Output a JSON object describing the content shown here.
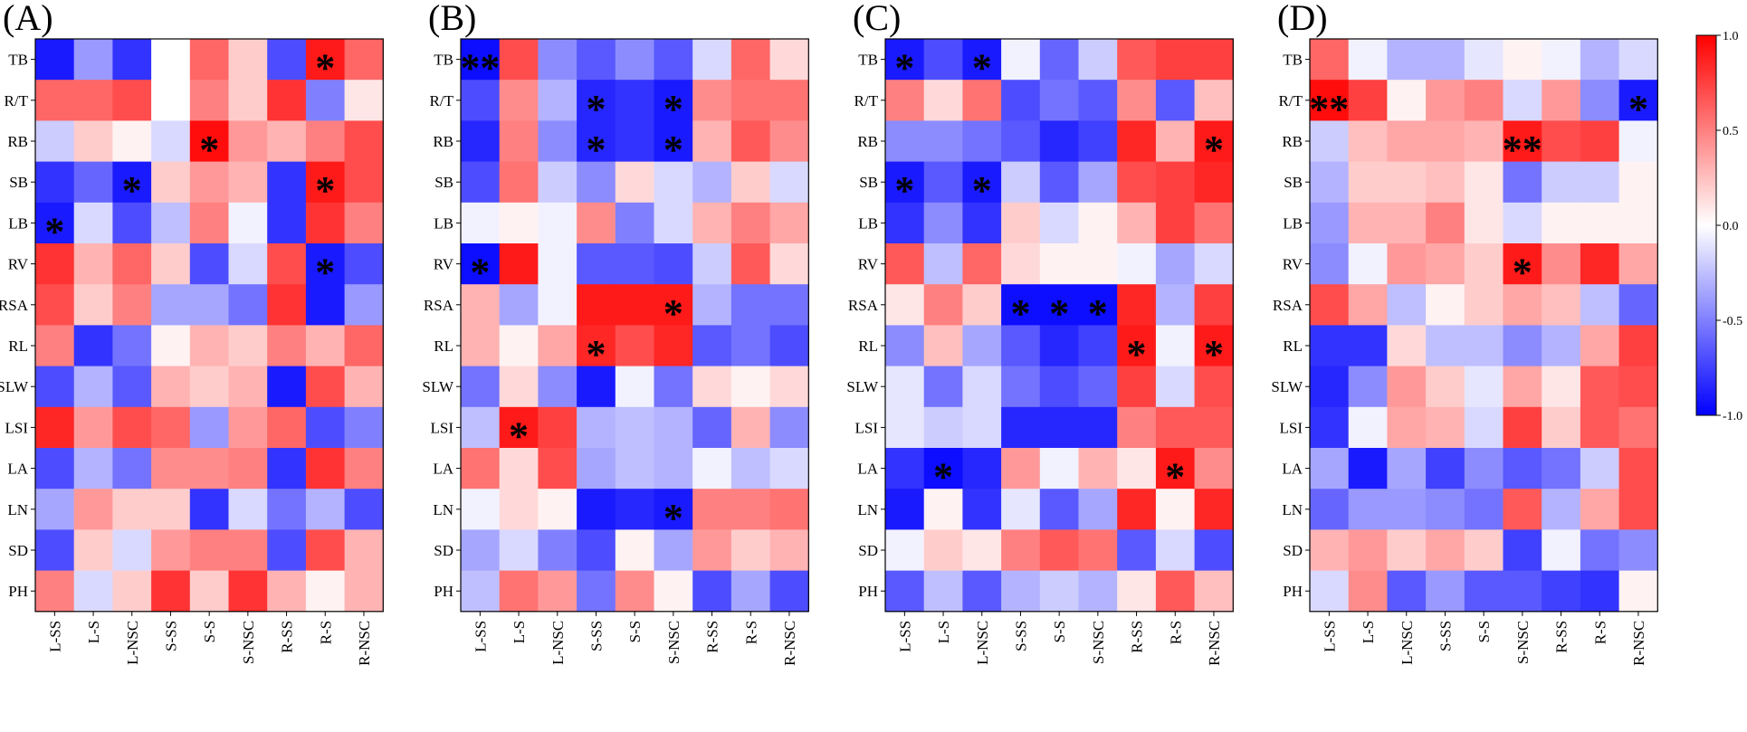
{
  "chart_data": {
    "type": "heatmap",
    "row_labels": [
      "TB",
      "R/T",
      "RB",
      "SB",
      "LB",
      "RV",
      "RSA",
      "RL",
      "SLW",
      "LSI",
      "LA",
      "LN",
      "SD",
      "PH"
    ],
    "col_labels": [
      "L-SS",
      "L-S",
      "L-NSC",
      "S-SS",
      "S-S",
      "S-NSC",
      "R-SS",
      "R-S",
      "R-NSC"
    ],
    "colorbar": {
      "min": -1.0,
      "max": 1.0,
      "ticks": [
        "1.0",
        "0.5",
        "0.0",
        "-0.5",
        "-1.0"
      ],
      "tick_values": [
        1.0,
        0.5,
        0.0,
        -0.5,
        -1.0
      ],
      "low_color": "#0000ff",
      "mid_color": "#ffffff",
      "high_color": "#ff0000"
    },
    "panels": [
      {
        "label": "(A)",
        "values": [
          [
            -0.9,
            -0.4,
            -0.8,
            0.0,
            0.6,
            0.2,
            -0.7,
            0.9,
            0.6
          ],
          [
            0.6,
            0.6,
            0.7,
            0.0,
            0.5,
            0.2,
            0.8,
            -0.5,
            0.1
          ],
          [
            -0.2,
            0.2,
            0.05,
            -0.15,
            0.95,
            0.4,
            0.3,
            0.5,
            0.7
          ],
          [
            -0.8,
            -0.6,
            -0.9,
            0.2,
            0.4,
            0.3,
            -0.8,
            0.9,
            0.7
          ],
          [
            -0.9,
            -0.15,
            -0.7,
            -0.25,
            0.5,
            -0.05,
            -0.8,
            0.8,
            0.5
          ],
          [
            0.8,
            0.3,
            0.6,
            0.2,
            -0.7,
            -0.15,
            0.7,
            -0.9,
            -0.7
          ],
          [
            0.7,
            0.2,
            0.5,
            -0.35,
            -0.35,
            -0.55,
            0.8,
            -0.9,
            -0.4
          ],
          [
            0.5,
            -0.8,
            -0.55,
            0.05,
            0.3,
            0.2,
            0.5,
            0.3,
            0.6
          ],
          [
            -0.7,
            -0.3,
            -0.65,
            0.3,
            0.2,
            0.3,
            -0.9,
            0.7,
            0.3
          ],
          [
            0.85,
            0.4,
            0.7,
            0.6,
            -0.4,
            0.4,
            0.6,
            -0.7,
            -0.5
          ],
          [
            -0.7,
            -0.3,
            -0.55,
            0.45,
            0.45,
            0.5,
            -0.8,
            0.8,
            0.5
          ],
          [
            -0.35,
            0.4,
            0.2,
            0.2,
            -0.8,
            -0.15,
            -0.55,
            -0.3,
            -0.7
          ],
          [
            -0.7,
            0.2,
            -0.15,
            0.4,
            0.5,
            0.5,
            -0.7,
            0.7,
            0.3
          ],
          [
            0.5,
            -0.15,
            0.2,
            0.8,
            0.2,
            0.8,
            0.3,
            0.05,
            0.3
          ]
        ],
        "significance": [
          {
            "row": "TB",
            "col": "R-S",
            "mark": "*"
          },
          {
            "row": "RB",
            "col": "S-S",
            "mark": "*"
          },
          {
            "row": "SB",
            "col": "L-NSC",
            "mark": "*"
          },
          {
            "row": "SB",
            "col": "R-S",
            "mark": "*"
          },
          {
            "row": "LB",
            "col": "L-SS",
            "mark": "*"
          },
          {
            "row": "RV",
            "col": "R-S",
            "mark": "*"
          }
        ]
      },
      {
        "label": "(B)",
        "values": [
          [
            -0.95,
            0.7,
            -0.45,
            -0.65,
            -0.45,
            -0.65,
            -0.15,
            0.6,
            0.15
          ],
          [
            -0.7,
            0.45,
            -0.3,
            -0.85,
            -0.8,
            -0.9,
            0.45,
            0.55,
            0.55
          ],
          [
            -0.85,
            0.5,
            -0.45,
            -0.85,
            -0.8,
            -0.9,
            0.3,
            0.65,
            0.45
          ],
          [
            -0.7,
            0.55,
            -0.2,
            -0.45,
            0.15,
            -0.15,
            -0.3,
            0.2,
            -0.15
          ],
          [
            -0.05,
            0.05,
            -0.05,
            0.45,
            -0.5,
            -0.15,
            0.3,
            0.5,
            0.35
          ],
          [
            -0.95,
            0.9,
            -0.05,
            -0.65,
            -0.65,
            -0.7,
            -0.2,
            0.65,
            0.15
          ],
          [
            0.3,
            -0.35,
            -0.05,
            0.9,
            0.9,
            0.9,
            -0.3,
            -0.55,
            -0.55
          ],
          [
            0.3,
            0.05,
            0.35,
            0.85,
            0.7,
            0.85,
            -0.65,
            -0.55,
            -0.7
          ],
          [
            -0.55,
            0.15,
            -0.45,
            -0.9,
            -0.05,
            -0.55,
            0.15,
            0.05,
            0.15
          ],
          [
            -0.25,
            0.9,
            0.75,
            -0.3,
            -0.25,
            -0.3,
            -0.6,
            0.3,
            -0.45
          ],
          [
            0.55,
            0.15,
            0.7,
            -0.35,
            -0.25,
            -0.3,
            -0.05,
            -0.25,
            -0.15
          ],
          [
            -0.05,
            0.15,
            0.05,
            -0.9,
            -0.85,
            -0.9,
            0.5,
            0.5,
            0.55
          ],
          [
            -0.35,
            -0.15,
            -0.5,
            -0.7,
            0.05,
            -0.35,
            0.4,
            0.2,
            0.3
          ],
          [
            -0.25,
            0.55,
            0.4,
            -0.55,
            0.45,
            0.05,
            -0.7,
            -0.35,
            -0.7
          ]
        ],
        "significance": [
          {
            "row": "TB",
            "col": "L-SS",
            "mark": "**"
          },
          {
            "row": "R/T",
            "col": "S-SS",
            "mark": "*"
          },
          {
            "row": "R/T",
            "col": "S-NSC",
            "mark": "*"
          },
          {
            "row": "RB",
            "col": "S-SS",
            "mark": "*"
          },
          {
            "row": "RB",
            "col": "S-NSC",
            "mark": "*"
          },
          {
            "row": "RV",
            "col": "L-SS",
            "mark": "*"
          },
          {
            "row": "RSA",
            "col": "S-NSC",
            "mark": "*"
          },
          {
            "row": "RL",
            "col": "S-SS",
            "mark": "*"
          },
          {
            "row": "LSI",
            "col": "L-S",
            "mark": "*"
          },
          {
            "row": "LN",
            "col": "S-NSC",
            "mark": "*"
          }
        ]
      },
      {
        "label": "(C)",
        "values": [
          [
            -0.9,
            -0.7,
            -0.9,
            -0.05,
            -0.6,
            -0.2,
            0.65,
            0.75,
            0.75
          ],
          [
            0.5,
            0.15,
            0.55,
            -0.7,
            -0.55,
            -0.65,
            0.45,
            -0.65,
            0.25
          ],
          [
            -0.45,
            -0.45,
            -0.55,
            -0.65,
            -0.85,
            -0.75,
            0.85,
            0.3,
            0.9
          ],
          [
            -0.9,
            -0.65,
            -0.9,
            -0.2,
            -0.65,
            -0.35,
            0.7,
            0.75,
            0.85
          ],
          [
            -0.8,
            -0.45,
            -0.8,
            0.2,
            -0.15,
            0.05,
            0.3,
            0.75,
            0.55
          ],
          [
            0.65,
            -0.25,
            0.6,
            0.15,
            0.05,
            0.05,
            -0.05,
            -0.35,
            -0.15
          ],
          [
            0.1,
            0.5,
            0.2,
            -0.95,
            -0.95,
            -0.95,
            0.85,
            -0.3,
            0.75
          ],
          [
            -0.45,
            0.25,
            -0.35,
            -0.65,
            -0.85,
            -0.75,
            0.9,
            -0.05,
            0.9
          ],
          [
            -0.1,
            -0.55,
            -0.15,
            -0.55,
            -0.7,
            -0.6,
            0.75,
            -0.15,
            0.7
          ],
          [
            -0.1,
            -0.2,
            -0.15,
            -0.85,
            -0.85,
            -0.85,
            0.5,
            0.65,
            0.65
          ],
          [
            -0.8,
            -0.95,
            -0.85,
            0.4,
            -0.05,
            0.3,
            0.1,
            0.9,
            0.45
          ],
          [
            -0.9,
            0.05,
            -0.8,
            -0.1,
            -0.65,
            -0.35,
            0.85,
            0.05,
            0.85
          ],
          [
            -0.05,
            0.2,
            0.1,
            0.5,
            0.65,
            0.55,
            -0.65,
            -0.15,
            -0.7
          ],
          [
            -0.65,
            -0.25,
            -0.65,
            -0.3,
            -0.2,
            -0.3,
            0.1,
            0.65,
            0.25
          ]
        ],
        "significance": [
          {
            "row": "TB",
            "col": "L-SS",
            "mark": "*"
          },
          {
            "row": "TB",
            "col": "L-NSC",
            "mark": "*"
          },
          {
            "row": "RB",
            "col": "R-NSC",
            "mark": "*"
          },
          {
            "row": "SB",
            "col": "L-SS",
            "mark": "*"
          },
          {
            "row": "SB",
            "col": "L-NSC",
            "mark": "*"
          },
          {
            "row": "RSA",
            "col": "S-SS",
            "mark": "*"
          },
          {
            "row": "RSA",
            "col": "S-S",
            "mark": "*"
          },
          {
            "row": "RSA",
            "col": "S-NSC",
            "mark": "*"
          },
          {
            "row": "RL",
            "col": "R-SS",
            "mark": "*"
          },
          {
            "row": "RL",
            "col": "R-NSC",
            "mark": "*"
          },
          {
            "row": "LA",
            "col": "L-S",
            "mark": "*"
          },
          {
            "row": "LA",
            "col": "R-S",
            "mark": "*"
          }
        ]
      },
      {
        "label": "(D)",
        "values": [
          [
            0.6,
            -0.05,
            -0.3,
            -0.3,
            -0.1,
            0.05,
            -0.05,
            -0.3,
            -0.15
          ],
          [
            0.95,
            0.75,
            0.05,
            0.4,
            0.5,
            -0.15,
            0.4,
            -0.45,
            -0.9
          ],
          [
            -0.2,
            0.25,
            0.35,
            0.35,
            0.3,
            0.9,
            0.7,
            0.75,
            -0.05
          ],
          [
            -0.3,
            0.2,
            0.2,
            0.25,
            0.1,
            -0.55,
            -0.2,
            -0.2,
            0.05
          ],
          [
            -0.4,
            0.3,
            0.3,
            0.5,
            0.1,
            -0.15,
            0.05,
            0.05,
            0.05
          ],
          [
            -0.45,
            -0.05,
            0.4,
            0.35,
            0.2,
            0.9,
            0.45,
            0.85,
            0.35
          ],
          [
            0.7,
            0.35,
            -0.25,
            0.05,
            0.2,
            0.35,
            0.25,
            -0.25,
            -0.6
          ],
          [
            -0.8,
            -0.8,
            0.15,
            -0.25,
            -0.25,
            -0.45,
            -0.3,
            0.35,
            0.75
          ],
          [
            -0.85,
            -0.45,
            0.4,
            0.2,
            -0.1,
            0.35,
            0.1,
            0.65,
            0.7
          ],
          [
            -0.8,
            -0.05,
            0.35,
            0.3,
            -0.15,
            0.75,
            0.2,
            0.65,
            0.55
          ],
          [
            -0.35,
            -0.9,
            -0.35,
            -0.75,
            -0.45,
            -0.65,
            -0.55,
            -0.2,
            0.7
          ],
          [
            -0.6,
            -0.4,
            -0.4,
            -0.45,
            -0.55,
            0.65,
            -0.3,
            0.35,
            0.7
          ],
          [
            0.3,
            0.4,
            0.2,
            0.35,
            0.2,
            -0.75,
            -0.05,
            -0.55,
            -0.45
          ],
          [
            -0.15,
            0.45,
            -0.65,
            -0.4,
            -0.65,
            -0.65,
            -0.75,
            -0.8,
            0.05
          ]
        ],
        "significance": [
          {
            "row": "R/T",
            "col": "L-SS",
            "mark": "**"
          },
          {
            "row": "R/T",
            "col": "R-NSC",
            "mark": "*"
          },
          {
            "row": "RB",
            "col": "S-NSC",
            "mark": "**"
          },
          {
            "row": "RV",
            "col": "S-NSC",
            "mark": "*"
          }
        ]
      }
    ]
  }
}
